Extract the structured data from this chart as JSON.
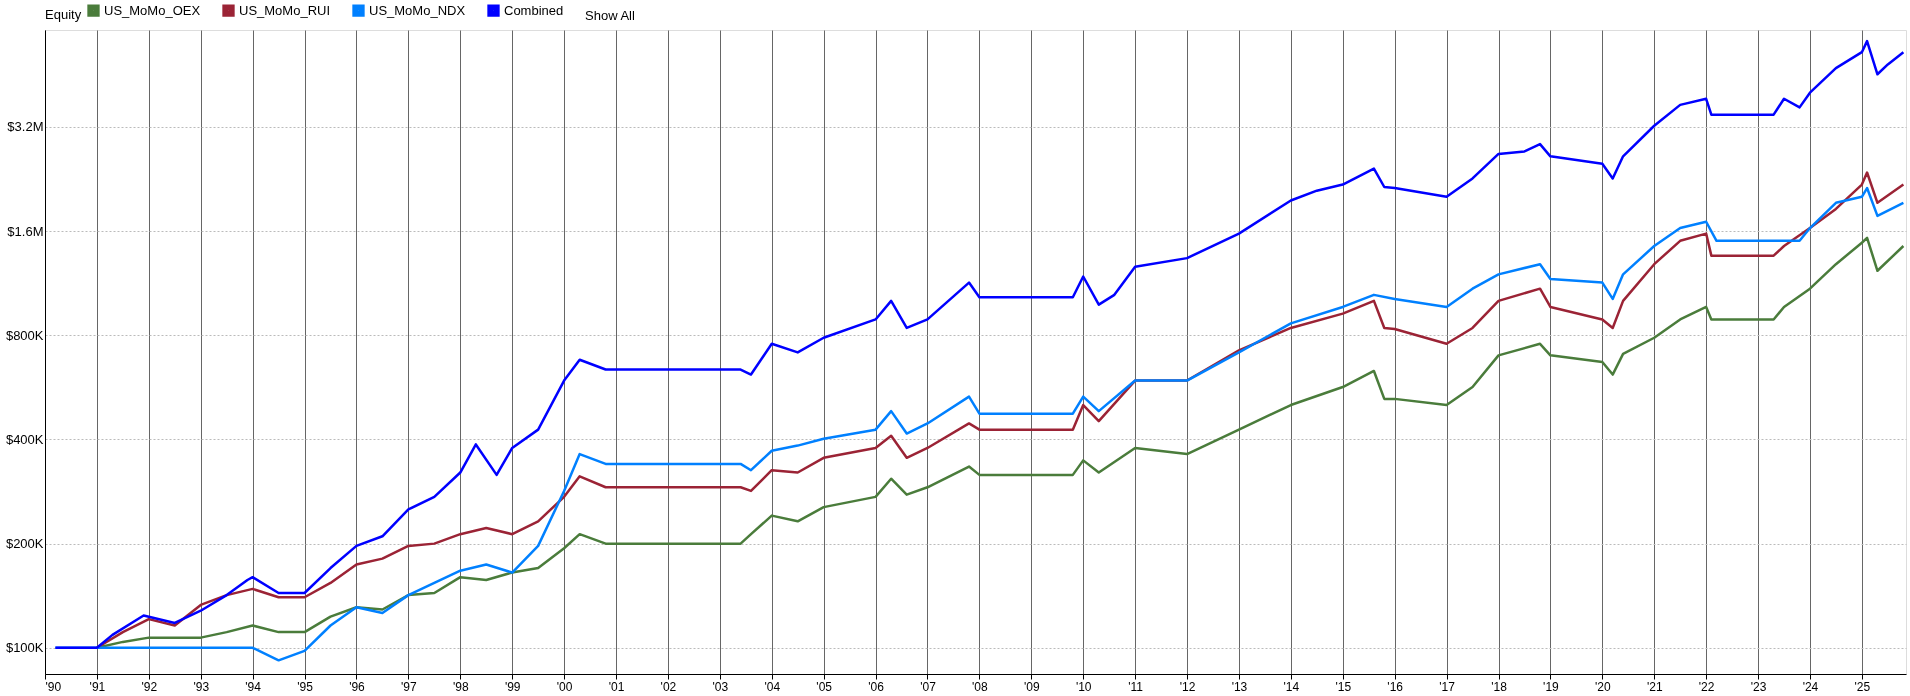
{
  "chart_data": {
    "type": "line",
    "legend_title": "Equity",
    "legend": "top left",
    "grid": true,
    "log": true,
    "marker": "none",
    "line_style": "solid",
    "annotations": [
      "Show All"
    ],
    "xlim": [
      1990,
      2025.85
    ],
    "ylim": [
      84000,
      6100000
    ],
    "xticks": [
      {
        "value": 1990,
        "label": "'90"
      },
      {
        "value": 1991,
        "label": "'91"
      },
      {
        "value": 1992,
        "label": "'92"
      },
      {
        "value": 1993,
        "label": "'93"
      },
      {
        "value": 1994,
        "label": "'94"
      },
      {
        "value": 1995,
        "label": "'95"
      },
      {
        "value": 1996,
        "label": "'96"
      },
      {
        "value": 1997,
        "label": "'97"
      },
      {
        "value": 1998,
        "label": "'98"
      },
      {
        "value": 1999,
        "label": "'99"
      },
      {
        "value": 2000,
        "label": "'00"
      },
      {
        "value": 2001,
        "label": "'01"
      },
      {
        "value": 2002,
        "label": "'02"
      },
      {
        "value": 2003,
        "label": "'03"
      },
      {
        "value": 2004,
        "label": "'04"
      },
      {
        "value": 2005,
        "label": "'05"
      },
      {
        "value": 2006,
        "label": "'06"
      },
      {
        "value": 2007,
        "label": "'07"
      },
      {
        "value": 2008,
        "label": "'08"
      },
      {
        "value": 2009,
        "label": "'09"
      },
      {
        "value": 2010,
        "label": "'10"
      },
      {
        "value": 2011,
        "label": "'11"
      },
      {
        "value": 2012,
        "label": "'12"
      },
      {
        "value": 2013,
        "label": "'13"
      },
      {
        "value": 2014,
        "label": "'14"
      },
      {
        "value": 2015,
        "label": "'15"
      },
      {
        "value": 2016,
        "label": "'16"
      },
      {
        "value": 2017,
        "label": "'17"
      },
      {
        "value": 2018,
        "label": "'18"
      },
      {
        "value": 2019,
        "label": "'19"
      },
      {
        "value": 2020,
        "label": "'20"
      },
      {
        "value": 2021,
        "label": "'21"
      },
      {
        "value": 2022,
        "label": "'22"
      },
      {
        "value": 2023,
        "label": "'23"
      },
      {
        "value": 2024,
        "label": "'24"
      },
      {
        "value": 2025,
        "label": "'25"
      }
    ],
    "yticks": [
      {
        "value": 100000,
        "label": "$100K"
      },
      {
        "value": 200000,
        "label": "$200K"
      },
      {
        "value": 400000,
        "label": "$400K"
      },
      {
        "value": 800000,
        "label": "$800K"
      },
      {
        "value": 1600000,
        "label": "$1.6M"
      },
      {
        "value": 3200000,
        "label": "$3.2M"
      }
    ],
    "series": [
      {
        "name": "US_MoMo_OEX",
        "color": "#4a7c3b",
        "x": [
          1991.0,
          1991.5,
          1992.0,
          1993.0,
          1993.5,
          1994.0,
          1994.5,
          1995.0,
          1995.5,
          1996.0,
          1996.5,
          1997.0,
          1997.5,
          1998.0,
          1998.5,
          1999.0,
          1999.5,
          2000.0,
          2000.3,
          2000.8,
          2003.4,
          2003.6,
          2004.0,
          2004.5,
          2005.0,
          2006.0,
          2006.3,
          2006.6,
          2007.0,
          2007.8,
          2008.0,
          2009.8,
          2010.0,
          2010.3,
          2011.0,
          2012.0,
          2013.0,
          2014.0,
          2015.0,
          2015.6,
          2015.8,
          2016.0,
          2017.0,
          2017.5,
          2018.0,
          2018.8,
          2019.0,
          2020.0,
          2020.2,
          2020.4,
          2021.0,
          2021.5,
          2022.0,
          2022.1,
          2023.3,
          2023.5,
          2024.0,
          2024.5,
          2025.0,
          2025.1,
          2025.3,
          2025.8
        ],
        "values": [
          100000,
          104000,
          107000,
          107000,
          111000,
          116000,
          111000,
          111000,
          123000,
          131000,
          129000,
          142000,
          144000,
          160000,
          157000,
          165000,
          170000,
          194000,
          213000,
          200000,
          200000,
          213000,
          241000,
          232000,
          255000,
          273000,
          308000,
          277000,
          291000,
          334000,
          316000,
          316000,
          348000,
          321000,
          378000,
          363000,
          427000,
          503000,
          567000,
          631000,
          524000,
          524000,
          503000,
          567000,
          700000,
          756000,
          700000,
          670000,
          616000,
          707000,
          787000,
          889000,
          966000,
          889000,
          889000,
          966000,
          1091000,
          1284000,
          1481000,
          1530000,
          1229000,
          1449000
        ]
      },
      {
        "name": "US_MoMo_RUI",
        "color": "#9b2335",
        "x": [
          1991.0,
          1991.5,
          1992.0,
          1992.5,
          1993.0,
          1993.5,
          1994.0,
          1994.5,
          1995.0,
          1995.5,
          1996.0,
          1996.5,
          1997.0,
          1997.5,
          1998.0,
          1998.5,
          1999.0,
          1999.5,
          2000.0,
          2000.3,
          2000.8,
          2003.4,
          2003.6,
          2004.0,
          2004.5,
          2005.0,
          2006.0,
          2006.3,
          2006.6,
          2007.0,
          2007.8,
          2008.0,
          2009.8,
          2010.0,
          2010.3,
          2011.0,
          2012.0,
          2013.0,
          2014.0,
          2015.0,
          2015.6,
          2015.8,
          2016.0,
          2017.0,
          2017.5,
          2018.0,
          2018.8,
          2019.0,
          2020.0,
          2020.2,
          2020.4,
          2021.0,
          2021.5,
          2022.0,
          2022.1,
          2023.3,
          2023.5,
          2024.0,
          2024.5,
          2025.0,
          2025.1,
          2025.3,
          2025.8
        ],
        "values": [
          100000,
          111000,
          121000,
          116000,
          133000,
          142000,
          148000,
          140000,
          140000,
          154000,
          174000,
          181000,
          197000,
          200000,
          213000,
          222000,
          213000,
          232000,
          273000,
          313000,
          291000,
          291000,
          284000,
          326000,
          321000,
          354000,
          378000,
          410000,
          354000,
          378000,
          445000,
          427000,
          427000,
          503000,
          452000,
          592000,
          592000,
          724000,
          840000,
          924000,
          1006000,
          840000,
          834000,
          756000,
          840000,
          1006000,
          1091000,
          966000,
          889000,
          840000,
          1006000,
          1284000,
          1500000,
          1574000,
          1359000,
          1359000,
          1449000,
          1633000,
          1855000,
          2181000,
          2363000,
          1932000,
          2181000
        ]
      },
      {
        "name": "US_MoMo_NDX",
        "color": "#0080ff",
        "x": [
          1990.2,
          1991.0,
          1993.9,
          1994.0,
          1994.5,
          1995.0,
          1995.5,
          1996.0,
          1996.5,
          1997.0,
          1997.5,
          1998.0,
          1998.5,
          1999.0,
          1999.5,
          2000.0,
          2000.3,
          2000.8,
          2003.4,
          2003.6,
          2004.0,
          2004.5,
          2005.0,
          2006.0,
          2006.3,
          2006.6,
          2007.0,
          2007.8,
          2008.0,
          2009.8,
          2010.0,
          2010.3,
          2011.0,
          2012.0,
          2013.0,
          2014.0,
          2015.0,
          2015.6,
          2016.0,
          2017.0,
          2017.5,
          2018.0,
          2018.8,
          2019.0,
          2020.0,
          2020.2,
          2020.4,
          2021.0,
          2021.5,
          2022.0,
          2022.2,
          2023.3,
          2023.8,
          2024.0,
          2024.5,
          2025.0,
          2025.1,
          2025.3,
          2025.8
        ],
        "values": [
          100000,
          100000,
          100000,
          100000,
          92000,
          98000,
          116000,
          131000,
          126000,
          142000,
          154000,
          167000,
          174000,
          165000,
          197000,
          284000,
          363000,
          340000,
          340000,
          326000,
          371000,
          384000,
          402000,
          427000,
          483000,
          416000,
          445000,
          532000,
          475000,
          475000,
          532000,
          483000,
          592000,
          592000,
          714000,
          866000,
          966000,
          1047000,
          1019000,
          966000,
          1091000,
          1200000,
          1284000,
          1164000,
          1136000,
          1019000,
          1200000,
          1449000,
          1633000,
          1703000,
          1500000,
          1500000,
          1500000,
          1633000,
          1932000,
          2010000,
          2131000,
          1771000,
          1932000
        ]
      },
      {
        "name": "Combined",
        "color": "#0000ff",
        "x": [
          1990.2,
          1991.0,
          1991.3,
          1991.9,
          1992.5,
          1993.0,
          1993.5,
          1993.9,
          1994.0,
          1994.5,
          1995.0,
          1995.5,
          1996.0,
          1996.5,
          1997.0,
          1997.5,
          1998.0,
          1998.3,
          1998.7,
          1999.0,
          1999.5,
          2000.0,
          2000.3,
          2000.8,
          2003.4,
          2003.6,
          2004.0,
          2004.5,
          2005.0,
          2006.0,
          2006.3,
          2006.6,
          2007.0,
          2007.8,
          2008.0,
          2009.8,
          2010.0,
          2010.3,
          2010.6,
          2011.0,
          2012.0,
          2013.0,
          2014.0,
          2014.5,
          2015.0,
          2015.6,
          2015.8,
          2016.0,
          2017.0,
          2017.5,
          2018.0,
          2018.5,
          2018.8,
          2019.0,
          2020.0,
          2020.2,
          2020.4,
          2021.0,
          2021.5,
          2022.0,
          2022.1,
          2023.3,
          2023.5,
          2023.8,
          2024.0,
          2024.5,
          2025.0,
          2025.1,
          2025.3,
          2025.5,
          2025.8
        ],
        "values": [
          100000,
          100000,
          109000,
          124000,
          118000,
          128000,
          142000,
          157000,
          160000,
          144000,
          144000,
          170000,
          197000,
          210000,
          251000,
          273000,
          321000,
          387000,
          316000,
          378000,
          427000,
          592000,
          680000,
          637000,
          637000,
          616000,
          756000,
          714000,
          787000,
          889000,
          1006000,
          840000,
          889000,
          1136000,
          1030000,
          1030000,
          1183000,
          981000,
          1047000,
          1263000,
          1337000,
          1574000,
          1962000,
          2094000,
          2181000,
          2425000,
          2146000,
          2131000,
          2010000,
          2272000,
          2674000,
          2718000,
          2854000,
          2632000,
          2505000,
          2272000,
          2632000,
          3226000,
          3706000,
          3860000,
          3473000,
          3473000,
          3860000,
          3645000,
          4020000,
          4733000,
          5263000,
          5665000,
          4544000,
          4850000,
          5263000
        ]
      }
    ]
  }
}
